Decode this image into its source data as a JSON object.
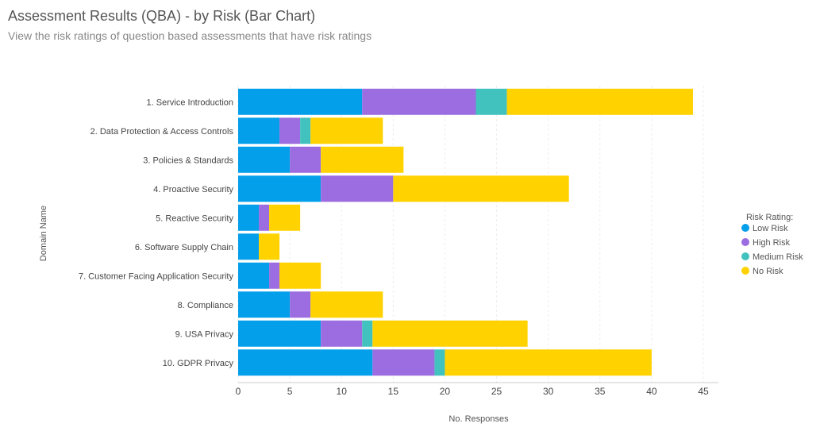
{
  "header": {
    "title": "Assessment Results (QBA) - by Risk (Bar Chart)",
    "subtitle": "View the risk ratings of question based assessments that have risk ratings"
  },
  "chart_data": {
    "type": "bar",
    "orientation": "horizontal",
    "stacked": true,
    "xlabel": "No. Responses",
    "ylabel": "Domain Name",
    "xlim": [
      0,
      45
    ],
    "xticks": [
      0,
      5,
      10,
      15,
      20,
      25,
      30,
      35,
      40,
      45
    ],
    "categories": [
      "1. Service Introduction",
      "2. Data Protection & Access Controls",
      "3. Policies & Standards",
      "4. Proactive Security",
      "5. Reactive Security",
      "6. Software Supply Chain",
      "7. Customer Facing Application Security",
      "8. Compliance",
      "9. USA Privacy",
      "10. GDPR Privacy"
    ],
    "legend_title": "Risk Rating:",
    "legend_position": "right",
    "series": [
      {
        "name": "Low Risk",
        "color": "#039fea",
        "values": [
          12,
          4,
          5,
          8,
          2,
          2,
          3,
          5,
          8,
          13
        ]
      },
      {
        "name": "High Risk",
        "color": "#9b6de0",
        "values": [
          11,
          2,
          3,
          7,
          1,
          0,
          1,
          2,
          4,
          6
        ]
      },
      {
        "name": "Medium Risk",
        "color": "#42c2bf",
        "values": [
          3,
          1,
          0,
          0,
          0,
          0,
          0,
          0,
          1,
          1
        ]
      },
      {
        "name": "No Risk",
        "color": "#ffd200",
        "values": [
          18,
          7,
          8,
          17,
          3,
          2,
          4,
          7,
          15,
          20
        ]
      }
    ]
  }
}
